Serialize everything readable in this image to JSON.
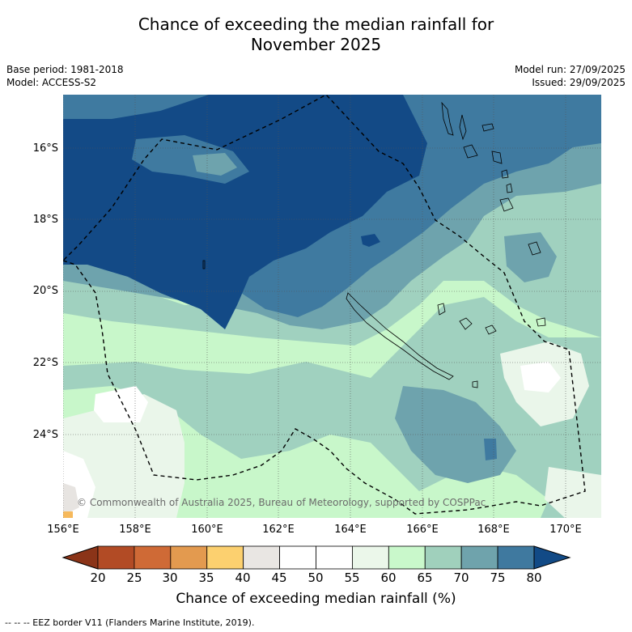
{
  "title": {
    "line1": "Chance of exceeding the median rainfall for",
    "line2": "November 2025"
  },
  "meta": {
    "base_period": "Base period: 1981-2018",
    "model": "Model: ACCESS-S2",
    "model_run": "Model run: 27/09/2025",
    "issued": "Issued: 29/09/2025"
  },
  "map": {
    "lat_labels": [
      "16°S",
      "18°S",
      "20°S",
      "22°S",
      "24°S"
    ],
    "lon_labels": [
      "156°E",
      "158°E",
      "160°E",
      "162°E",
      "164°E",
      "166°E",
      "168°E",
      "170°E"
    ],
    "copyright": "© Commonwealth of Australia 2025, Bureau of Meteorology, supported by COSPPac",
    "colors": {
      "c80": "#134a86",
      "c75": "#3f7aa0",
      "c70": "#6ea3ad",
      "c65": "#a0d1bf",
      "c60": "#c8f7ca",
      "c55": "#eaf6ea",
      "c50": "#ffffff",
      "grey": "#e7e4e1",
      "orange": "#f6b95c"
    }
  },
  "colorbar": {
    "title": "Chance of exceeding median rainfall (%)",
    "ticks": [
      "20",
      "25",
      "30",
      "35",
      "40",
      "45",
      "50",
      "55",
      "60",
      "65",
      "70",
      "75",
      "80"
    ],
    "under_color": "#8b3418",
    "over_color": "#124a86",
    "bin_colors": [
      "#b24b25",
      "#cf6a36",
      "#e39a4f",
      "#fcd06f",
      "#e9e6e3",
      "#ffffff",
      "#ffffff",
      "#ebf7ea",
      "#c9f8cb",
      "#a0d0bc",
      "#6fa3ac",
      "#3f799f"
    ]
  },
  "footnote": "--  --  -- EEZ border V11 (Flanders Marine Institute, 2019)."
}
